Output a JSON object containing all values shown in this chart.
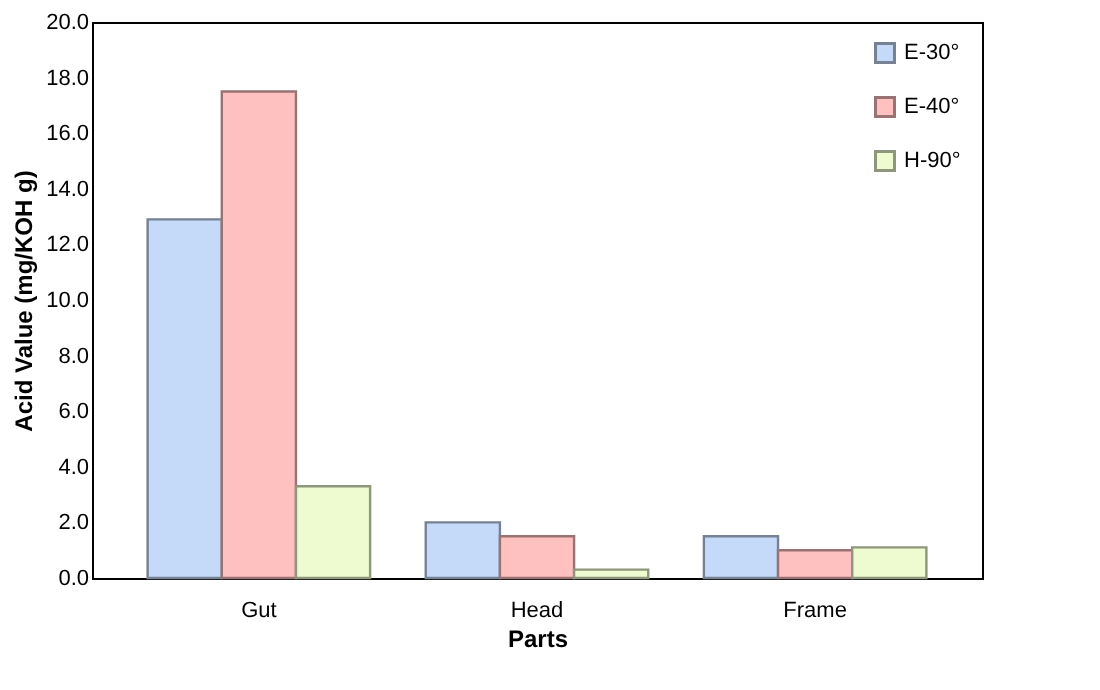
{
  "chart_data": {
    "type": "bar",
    "categories": [
      "Gut",
      "Head",
      "Frame"
    ],
    "series": [
      {
        "name": "E-30°",
        "color": "#c5d9f8",
        "values": [
          12.9,
          2.0,
          1.5
        ]
      },
      {
        "name": "E-40°",
        "color": "#ffc0c0",
        "values": [
          17.5,
          1.5,
          1.0
        ]
      },
      {
        "name": "H-90°",
        "color": "#eefad0",
        "values": [
          3.3,
          0.3,
          1.1
        ]
      }
    ],
    "xlabel": "Parts",
    "ylabel": "Acid Value (mg/KOH g)",
    "ylim": [
      0,
      20
    ],
    "yticks": [
      {
        "value": 0,
        "label": "0.0"
      },
      {
        "value": 2,
        "label": "2.0"
      },
      {
        "value": 4,
        "label": "4.0"
      },
      {
        "value": 6,
        "label": "6.0"
      },
      {
        "value": 8,
        "label": "8.0"
      },
      {
        "value": 10,
        "label": "10.0"
      },
      {
        "value": 12,
        "label": "12.0"
      },
      {
        "value": 14,
        "label": "14.0"
      },
      {
        "value": 16,
        "label": "16.0"
      },
      {
        "value": 18,
        "label": "18.0"
      },
      {
        "value": 20,
        "label": "20.0"
      }
    ],
    "grid": false,
    "legend": "top right"
  }
}
